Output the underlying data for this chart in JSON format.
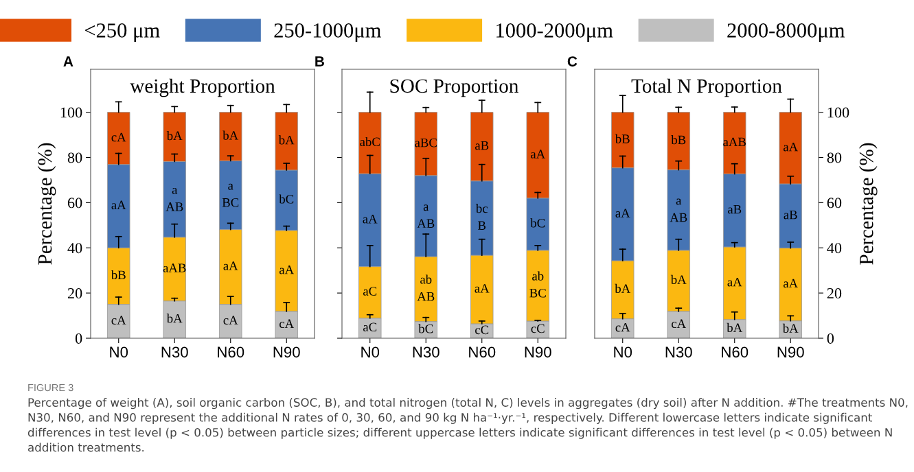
{
  "chart_data": [
    {
      "type": "bar",
      "stacked": true,
      "title": "weight Proportion",
      "ylabel": "Percentage (%)",
      "categories": [
        "N0",
        "N30",
        "N60",
        "N90"
      ],
      "ylim": [
        0,
        119
      ],
      "yticks": [
        0,
        20,
        40,
        60,
        80,
        100
      ],
      "legend": "top",
      "annotations": [
        "A",
        "FIGURE 3",
        "Percentage of weight (A), soil organic carbon (SOC, B), and total nitrogen (total N, C) levels in aggregates (dry soil) after N addition. #The treatments N0, N30, N60, and N90 represent the additional N rates of 0, 30, 60, and 90 kg N ha⁻¹·yr.⁻¹, respectively. Different lowercase letters indicate significant differences in test level (p < 0.05) between particle sizes; different uppercase letters indicate significant differences in test level (p < 0.05) between N addition treatments."
      ],
      "series": [
        {
          "name": "2000-8000μm",
          "color": "#bfbfbf",
          "values": [
            15.0,
            16.5,
            15.0,
            11.9
          ],
          "errors": [
            [
              15.0,
              18.2
            ],
            [
              16.5,
              17.7
            ],
            [
              15.0,
              18.5
            ],
            [
              11.9,
              15.8
            ]
          ],
          "value_labels": [
            "cA",
            "bA",
            "cA",
            "cA"
          ]
        },
        {
          "name": "1000-2000μm",
          "color": "#fbb811",
          "values": [
            25.0,
            28.2,
            33.1,
            35.8
          ],
          "errors": [
            [
              40.0,
              45.0
            ],
            [
              44.7,
              50.5
            ],
            [
              48.1,
              50.9
            ],
            [
              47.7,
              49.6
            ]
          ],
          "value_labels": [
            "bB",
            "aAB",
            "aA",
            "aA"
          ]
        },
        {
          "name": "250-1000μm",
          "color": "#4674b4",
          "values": [
            36.9,
            33.5,
            30.4,
            26.7
          ],
          "errors": [
            [
              76.9,
              81.8
            ],
            [
              78.2,
              81.5
            ],
            [
              78.5,
              80.7
            ],
            [
              74.4,
              77.4
            ]
          ],
          "value_labels": [
            "aA",
            "a\nAB",
            "a\nBC",
            "bC"
          ]
        },
        {
          "name": "<250 μm",
          "color": "#e04e06",
          "values": [
            23.1,
            21.8,
            21.5,
            25.6
          ],
          "errors": [
            [
              100,
              104.6
            ],
            [
              100,
              102.5
            ],
            [
              100,
              103.0
            ],
            [
              100,
              103.4
            ]
          ],
          "value_labels": [
            "cA",
            "bA",
            "bA",
            "bA"
          ]
        }
      ]
    },
    {
      "type": "bar",
      "stacked": true,
      "title": "SOC Proportion",
      "categories": [
        "N0",
        "N30",
        "N60",
        "N90"
      ],
      "ylim": [
        0,
        119
      ],
      "yticks": [
        {
          "value": 0,
          "label": null
        },
        {
          "value": 20,
          "label": null
        },
        {
          "value": 40,
          "label": null
        },
        {
          "value": 60,
          "label": null
        },
        {
          "value": 80,
          "label": null
        },
        {
          "value": 100,
          "label": null
        }
      ],
      "tick_labels": "x",
      "annotations": [
        "B"
      ],
      "series": [
        {
          "color": "#bfbfbf",
          "values": [
            8.9,
            7.4,
            6.4,
            7.6
          ],
          "errors": [
            [
              8.9,
              10.4
            ],
            [
              7.4,
              9.2
            ],
            [
              6.4,
              7.6
            ],
            [
              7.6,
              7.9
            ]
          ],
          "value_labels": [
            "aC",
            "bC",
            "cC",
            "cC"
          ]
        },
        {
          "color": "#fbb811",
          "values": [
            22.8,
            28.7,
            30.3,
            31.3
          ],
          "errors": [
            [
              31.7,
              41.0
            ],
            [
              36.1,
              46.1
            ],
            [
              36.7,
              43.8
            ],
            [
              38.9,
              41.0
            ]
          ],
          "value_labels": [
            "aC",
            "ab\nAB",
            "aA",
            "ab\nBC"
          ]
        },
        {
          "color": "#4674b4",
          "values": [
            41.1,
            35.9,
            32.9,
            23.1
          ],
          "errors": [
            [
              72.8,
              80.9
            ],
            [
              72.0,
              79.6
            ],
            [
              69.6,
              76.9
            ],
            [
              62.0,
              64.5
            ]
          ],
          "value_labels": [
            "aA",
            "a\nAB",
            "bc\nB",
            "bC"
          ]
        },
        {
          "color": "#e04e06",
          "values": [
            27.2,
            28.0,
            30.4,
            38.0
          ],
          "errors": [
            [
              100,
              108.9
            ],
            [
              100,
              102.1
            ],
            [
              100,
              105.3
            ],
            [
              100,
              104.3
            ]
          ],
          "value_labels": [
            "abC",
            "aBC",
            "aB",
            "aA"
          ]
        }
      ]
    },
    {
      "type": "bar",
      "stacked": true,
      "title": "Total N Proportion",
      "y2label": "Percentage (%)",
      "categories": [
        "N0",
        "N30",
        "N60",
        "N90"
      ],
      "y2lim": [
        0,
        119
      ],
      "y2ticks": [
        0,
        20,
        40,
        60,
        80,
        100
      ],
      "annotations": [
        "C"
      ],
      "series": [
        {
          "color": "#bfbfbf",
          "axis": "y2",
          "values": [
            8.6,
            11.9,
            8.3,
            7.7
          ],
          "errors": [
            [
              8.6,
              10.9
            ],
            [
              11.9,
              13.3
            ],
            [
              8.3,
              11.6
            ],
            [
              7.7,
              9.9
            ]
          ],
          "value_labels": [
            "cA",
            "cA",
            "bA",
            "bA"
          ]
        },
        {
          "color": "#fbb811",
          "axis": "y2",
          "values": [
            25.7,
            27.0,
            32.1,
            32.2
          ],
          "errors": [
            [
              34.3,
              39.4
            ],
            [
              38.9,
              43.8
            ],
            [
              40.4,
              42.3
            ],
            [
              39.9,
              42.5
            ]
          ],
          "value_labels": [
            "bA",
            "bA",
            "aA",
            "aA"
          ]
        },
        {
          "color": "#4674b4",
          "axis": "y2",
          "values": [
            41.1,
            35.6,
            32.3,
            28.4
          ],
          "errors": [
            [
              75.4,
              80.6
            ],
            [
              74.5,
              78.4
            ],
            [
              72.7,
              77.2
            ],
            [
              68.3,
              71.7
            ]
          ],
          "value_labels": [
            "aA",
            "a\nAB",
            "aB",
            "aB"
          ]
        },
        {
          "color": "#e04e06",
          "axis": "y2",
          "values": [
            24.6,
            25.5,
            27.3,
            31.7
          ],
          "errors": [
            [
              100,
              107.4
            ],
            [
              100,
              102.2
            ],
            [
              100,
              102.3
            ],
            [
              100,
              105.8
            ]
          ],
          "value_labels": [
            "bB",
            "bB",
            "aAB",
            "aA"
          ]
        }
      ]
    }
  ]
}
